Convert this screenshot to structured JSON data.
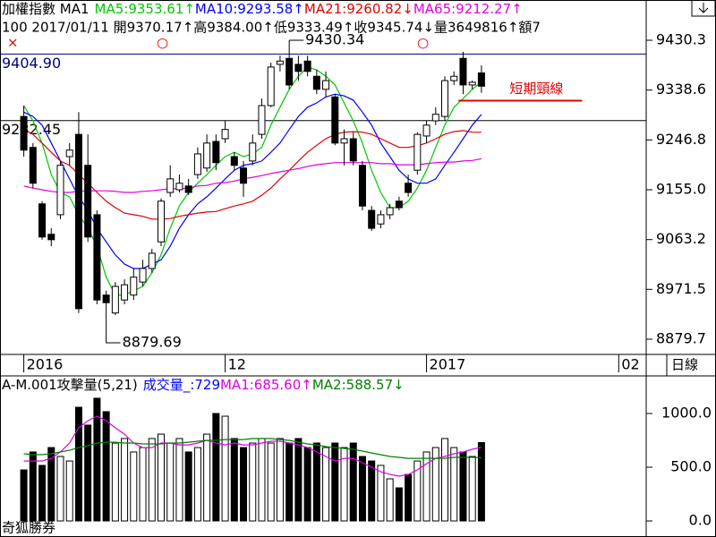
{
  "header": {
    "title": "加權指數 MA1",
    "line2": "100 2017/01/11 開9370.17↑高9384.00↑低9333.49↑收9345.74↓量3649816↑額7"
  },
  "period": "日線",
  "footer": "奇狐勝券",
  "chart_data": [
    {
      "type": "candlestick",
      "xlim": [
        -2.6,
        68
      ],
      "xticks": [
        {
          "value": 0,
          "label": "2016"
        },
        {
          "value": 22,
          "label": "12"
        },
        {
          "value": 44,
          "label": "2017"
        },
        {
          "value": 65,
          "label": "02"
        }
      ],
      "ylim": [
        8851.7,
        9504.5
      ],
      "yticks": [
        9430.3,
        9338.6,
        9246.8,
        {
          "value": 9155.0,
          "label": "9155.0"
        },
        9063.2,
        8971.5,
        8879.7
      ],
      "open": [
        9290,
        9233,
        9129,
        9073,
        9109,
        9216,
        9257,
        9200,
        9109,
        8961,
        8928,
        8952,
        8961,
        8985,
        9010,
        9059,
        9150,
        9155,
        9162,
        9183,
        9195,
        9244,
        9249,
        9216,
        9195,
        9208,
        9257,
        9310,
        9386,
        9397,
        9386,
        9392,
        9364,
        9340,
        9326,
        9241,
        9249,
        9200,
        9117,
        9092,
        9109,
        9134,
        9167,
        9191,
        9254,
        9282,
        9290,
        9356,
        9397,
        9348,
        9370.17
      ],
      "high": [
        9310,
        9241,
        9134,
        9084,
        9208,
        9241,
        9298,
        9257,
        9117,
        8969,
        8985,
        8990,
        9010,
        9026,
        9046,
        9139,
        9200,
        9183,
        9175,
        9233,
        9257,
        9257,
        9282,
        9224,
        9208,
        9257,
        9323,
        9389,
        9402,
        9430.34,
        9402,
        9402,
        9376,
        9373,
        9331,
        9266,
        9261,
        9208,
        9125,
        9117,
        9129,
        9142,
        9183,
        9261,
        9282,
        9307,
        9364,
        9373,
        9409,
        9356,
        9384.0
      ],
      "low": [
        9216,
        9158,
        9063,
        9051,
        9101,
        9200,
        8928,
        9059,
        8944,
        8936,
        8924,
        8944,
        8952,
        8977,
        9002,
        9051,
        9142,
        9150,
        9145,
        9175,
        9188,
        9191,
        9241,
        9191,
        9142,
        9200,
        9249,
        9307,
        9373,
        9340,
        9356,
        9364,
        9331,
        9326,
        9237,
        9200,
        9200,
        9117,
        9079,
        9084,
        9101,
        9117,
        9142,
        9183,
        9241,
        9274,
        9282,
        9348,
        9331,
        9340,
        9333.49
      ],
      "close": [
        9228,
        9167,
        9068,
        9063,
        9200,
        9228,
        8936,
        9068,
        8952,
        8947,
        8977,
        8980,
        8994,
        9010,
        9038,
        9134,
        9175,
        9167,
        9150,
        9221,
        9241,
        9205,
        9266,
        9200,
        9167,
        9241,
        9310,
        9381,
        9392,
        9348,
        9373,
        9373,
        9340,
        9356,
        9241,
        9249,
        9208,
        9125,
        9084,
        9109,
        9122,
        9122,
        9150,
        9257,
        9274,
        9294,
        9356,
        9364,
        9348,
        9353,
        9345.74
      ],
      "series": [
        {
          "name": "MA5:9353.61↑",
          "color": "#00c800",
          "values": [
            9310,
            9282,
            9241,
            9183,
            9150,
            9142,
            9109,
            9084,
            9051,
            8994,
            8961,
            8961,
            8969,
            8977,
            9002,
            9035,
            9084,
            9125,
            9150,
            9167,
            9183,
            9200,
            9216,
            9224,
            9216,
            9221,
            9233,
            9274,
            9307,
            9340,
            9364,
            9381,
            9376,
            9364,
            9348,
            9315,
            9282,
            9241,
            9191,
            9150,
            9122,
            9122,
            9134,
            9158,
            9191,
            9233,
            9274,
            9307,
            9323,
            9340,
            9353.61
          ]
        },
        {
          "name": "MA10:9293.58↑",
          "color": "#0000ff",
          "values": [
            9298,
            9290,
            9274,
            9241,
            9208,
            9175,
            9142,
            9117,
            9084,
            9059,
            9035,
            9018,
            9010,
            9010,
            9018,
            9026,
            9051,
            9084,
            9109,
            9129,
            9142,
            9158,
            9175,
            9191,
            9200,
            9203,
            9208,
            9224,
            9241,
            9266,
            9290,
            9307,
            9315,
            9326,
            9331,
            9328,
            9320,
            9298,
            9274,
            9241,
            9216,
            9191,
            9175,
            9167,
            9167,
            9175,
            9200,
            9224,
            9249,
            9274,
            9293.58
          ]
        },
        {
          "name": "MA21:9260.82↓",
          "color": "#e00000",
          "values": [
            9266,
            9257,
            9241,
            9224,
            9208,
            9200,
            9183,
            9167,
            9150,
            9134,
            9122,
            9112,
            9109,
            9106,
            9101,
            9101,
            9102,
            9106,
            9109,
            9112,
            9114,
            9115,
            9120,
            9125,
            9129,
            9134,
            9145,
            9158,
            9175,
            9191,
            9208,
            9224,
            9237,
            9249,
            9257,
            9261,
            9262,
            9261,
            9257,
            9249,
            9241,
            9233,
            9233,
            9236,
            9241,
            9249,
            9257,
            9262,
            9264,
            9261,
            9260.82
          ]
        },
        {
          "name": "MA65:9212.27↑",
          "color": "#e000e0",
          "values": [
            9162,
            9158,
            9155,
            9152,
            9150,
            9150,
            9152,
            9153,
            9153,
            9153,
            9152,
            9150,
            9150,
            9152,
            9153,
            9155,
            9157,
            9157,
            9158,
            9162,
            9163,
            9167,
            9168,
            9171,
            9175,
            9178,
            9181,
            9185,
            9188,
            9191,
            9194,
            9198,
            9201,
            9203,
            9205,
            9205,
            9205,
            9205,
            9205,
            9203,
            9203,
            9201,
            9201,
            9201,
            9203,
            9205,
            9206,
            9206,
            9208,
            9209,
            9212.27
          ]
        }
      ],
      "hlines": [
        {
          "value": 9404.9,
          "label": "9404.90",
          "color": "#000080"
        },
        {
          "value": 9282.45,
          "label": "9282.45",
          "color": "#000000"
        }
      ],
      "annotations": [
        {
          "x": 29,
          "value": 9430.34
        },
        {
          "x": 9,
          "value": 8879.69
        }
      ],
      "neckline": {
        "text": "短期頸線",
        "value": 9319,
        "x": [
          47.5,
          61
        ],
        "color": "#e00000"
      }
    },
    {
      "type": "bar",
      "title": "A-M.001攻擊量(5,21)",
      "volume_label": "成交量_:729",
      "volume_color": "#0000ff",
      "ylim": [
        -133,
        1350
      ],
      "yticks": [
        {
          "value": 1000,
          "label": "1000.0"
        },
        {
          "value": 500,
          "label": "500.0"
        },
        {
          "value": 0,
          "label": "0.0"
        }
      ],
      "values": [
        475,
        642,
        517,
        683,
        600,
        558,
        1058,
        892,
        1142,
        1017,
        725,
        767,
        642,
        683,
        767,
        808,
        725,
        767,
        642,
        683,
        808,
        1000,
        975,
        767,
        683,
        725,
        767,
        725,
        767,
        725,
        767,
        683,
        725,
        683,
        725,
        683,
        725,
        600,
        558,
        517,
        392,
        308,
        433,
        558,
        642,
        683,
        767,
        683,
        642,
        600,
        729
      ],
      "series": [
        {
          "name": "MA1:685.60↑",
          "color": "#e000e0",
          "values": [
            558,
            558,
            558,
            583,
            642,
            725,
            867,
            933,
            975,
            933,
            867,
            808,
            725,
            683,
            683,
            725,
            725,
            708,
            708,
            725,
            750,
            725,
            708,
            725,
            708,
            708,
            725,
            742,
            742,
            725,
            708,
            683,
            642,
            600,
            558,
            583,
            583,
            542,
            500,
            458,
            433,
            417,
            433,
            475,
            533,
            583,
            600,
            625,
            642,
            667,
            685.6
          ]
        },
        {
          "name": "MA2:588.57↓",
          "color": "#008000",
          "values": [
            625,
            617,
            617,
            625,
            642,
            658,
            683,
            700,
            725,
            733,
            733,
            725,
            725,
            717,
            717,
            717,
            725,
            725,
            733,
            742,
            750,
            750,
            758,
            758,
            758,
            767,
            767,
            767,
            758,
            750,
            733,
            717,
            708,
            692,
            683,
            675,
            667,
            650,
            633,
            617,
            600,
            592,
            583,
            583,
            583,
            583,
            583,
            592,
            592,
            592,
            588.57
          ]
        }
      ]
    }
  ]
}
